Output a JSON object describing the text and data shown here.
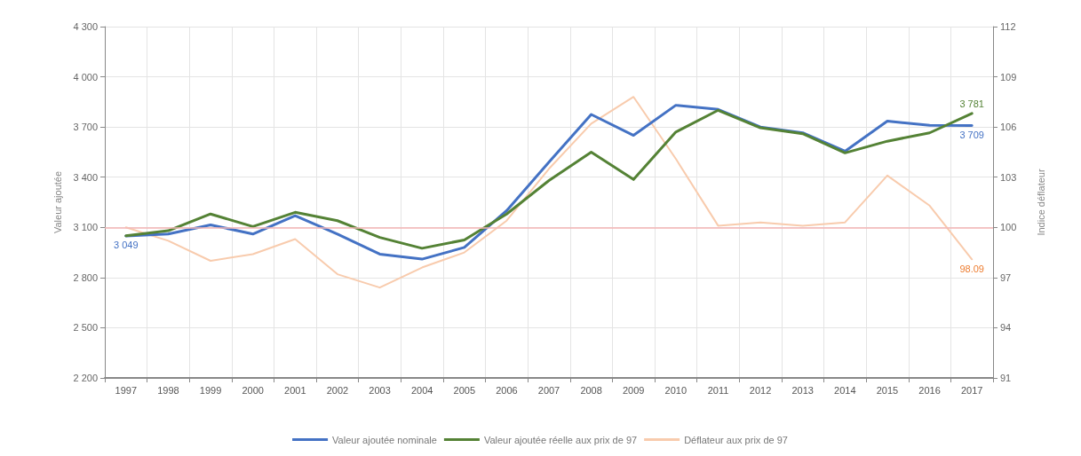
{
  "chart_data": {
    "type": "line",
    "categories": [
      "1997",
      "1998",
      "1999",
      "2000",
      "2001",
      "2002",
      "2003",
      "2004",
      "2005",
      "2006",
      "2007",
      "2008",
      "2009",
      "2010",
      "2011",
      "2012",
      "2013",
      "2014",
      "2015",
      "2016",
      "2017"
    ],
    "ylabel": "Valeur ajoutée",
    "y2label": "Indice déflateur",
    "ylim": [
      2200,
      4300
    ],
    "yticks": [
      {
        "value": 2200,
        "label": "2 200"
      },
      {
        "value": 2500,
        "label": "2 500"
      },
      {
        "value": 2800,
        "label": "2 800"
      },
      {
        "value": 3100,
        "label": "3 100"
      },
      {
        "value": 3400,
        "label": "3 400"
      },
      {
        "value": 3700,
        "label": "3 700"
      },
      {
        "value": 4000,
        "label": "4 000"
      },
      {
        "value": 4300,
        "label": "4 300"
      }
    ],
    "y2lim": [
      91,
      112
    ],
    "y2ticks": [
      91,
      94,
      97,
      100,
      103,
      106,
      109,
      112
    ],
    "grid": true,
    "legend": "bottom",
    "marker": "none",
    "line_style": "solid",
    "ref_lines": [
      {
        "axis": "y2",
        "value": 100,
        "color": "#f4b6b6"
      }
    ],
    "series": [
      {
        "name": "Valeur ajoutée nominale",
        "color": "#4472c4",
        "values": [
          3049,
          3060,
          3115,
          3060,
          3170,
          3060,
          2940,
          2910,
          2980,
          3200,
          3490,
          3775,
          3650,
          3830,
          3805,
          3700,
          3665,
          3555,
          3735,
          3710,
          3709
        ],
        "value_labels": [
          "3 049",
          null,
          null,
          null,
          null,
          null,
          null,
          null,
          null,
          null,
          null,
          null,
          null,
          null,
          null,
          null,
          null,
          null,
          null,
          null,
          "3 709"
        ]
      },
      {
        "name": "Valeur ajoutée réelle aux prix de 97",
        "color": "#548235",
        "values": [
          3050,
          3080,
          3180,
          3105,
          3190,
          3140,
          3040,
          2975,
          3025,
          3180,
          3380,
          3550,
          3386,
          3670,
          3800,
          3695,
          3660,
          3545,
          3615,
          3665,
          3781
        ],
        "value_labels": [
          null,
          null,
          null,
          null,
          null,
          null,
          null,
          null,
          null,
          null,
          null,
          null,
          null,
          null,
          null,
          null,
          null,
          null,
          null,
          null,
          "3 781"
        ]
      },
      {
        "name": "Déflateur aux prix de 97",
        "color": "#f8cbad",
        "axis": "y2",
        "values": [
          100.0,
          99.2,
          98.0,
          98.4,
          99.3,
          97.2,
          96.4,
          97.6,
          98.5,
          100.4,
          103.5,
          106.2,
          107.8,
          104.1,
          100.1,
          100.3,
          100.1,
          100.3,
          103.1,
          101.3,
          98.09
        ],
        "value_labels": [
          null,
          null,
          null,
          null,
          null,
          null,
          null,
          null,
          null,
          null,
          null,
          null,
          null,
          null,
          null,
          null,
          null,
          null,
          null,
          null,
          "98.09"
        ]
      }
    ]
  }
}
